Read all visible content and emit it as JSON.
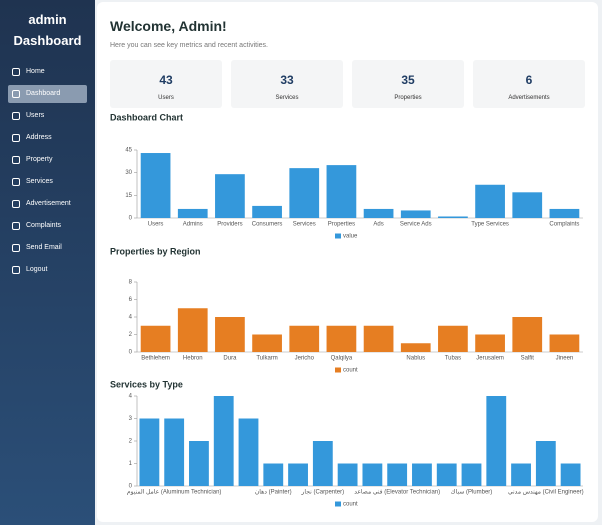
{
  "sidebar": {
    "title": "admin Dashboard",
    "menu": [
      "Home",
      "Dashboard",
      "Users",
      "Address",
      "Property",
      "Services",
      "Advertisement",
      "Complaints",
      "Send Email",
      "Logout"
    ],
    "active": 1
  },
  "header": {
    "title": "Welcome, Admin!",
    "subtitle": "Here you can see key metrics and recent activities."
  },
  "stats": [
    {
      "value": 43,
      "label": "Users"
    },
    {
      "value": 33,
      "label": "Services"
    },
    {
      "value": 35,
      "label": "Properties"
    },
    {
      "value": 6,
      "label": "Advertisements"
    }
  ],
  "chart_data": [
    {
      "type": "bar",
      "title": "Dashboard Chart",
      "categories": [
        "Users",
        "Admins",
        "Providers",
        "Consumers",
        "Services",
        "Properties",
        "Ads",
        "Service Ads",
        null,
        "Type Services",
        null,
        "Complaints"
      ],
      "series": [
        {
          "name": "value",
          "color": "#3498db",
          "values": [
            43,
            6,
            29,
            8,
            33,
            35,
            6,
            5,
            1,
            22,
            17,
            6
          ]
        }
      ],
      "ylim": [
        0,
        45
      ],
      "yticks": [
        0,
        15,
        30,
        45
      ]
    },
    {
      "type": "bar",
      "title": "Properties by Region",
      "categories": [
        "Bethlehem",
        "Hebron",
        "Dura",
        "Tulkarm",
        "Jericho",
        "Qalqilya",
        null,
        "Nablus",
        "Tubas",
        "Jerusalem",
        "Salfit",
        "Jineen"
      ],
      "series": [
        {
          "name": "count",
          "color": "#e67e22",
          "values": [
            3,
            5,
            4,
            2,
            3,
            3,
            3,
            1,
            3,
            2,
            4,
            2
          ]
        }
      ],
      "ylim": [
        0,
        8
      ],
      "yticks": [
        0,
        2,
        4,
        6,
        8
      ]
    },
    {
      "type": "bar",
      "title": "Services by Type",
      "categories": [
        null,
        "عامل المنيوم (Aluminum Technician)",
        null,
        null,
        null,
        "دهان (Painter)",
        null,
        "نجار (Carpenter)",
        null,
        null,
        "فني مصاعد (Elevator Technician)",
        null,
        null,
        "سباك (Plumber)",
        null,
        null,
        "مهندس مدني (Civil Engineer)",
        null
      ],
      "series": [
        {
          "name": "count",
          "color": "#3498db",
          "values": [
            3,
            3,
            2,
            4,
            3,
            1,
            1,
            2,
            1,
            1,
            1,
            1,
            1,
            1,
            4,
            1,
            2,
            1
          ]
        }
      ],
      "ylim": [
        0,
        4
      ],
      "yticks": [
        0,
        1,
        2,
        3,
        4
      ]
    }
  ]
}
